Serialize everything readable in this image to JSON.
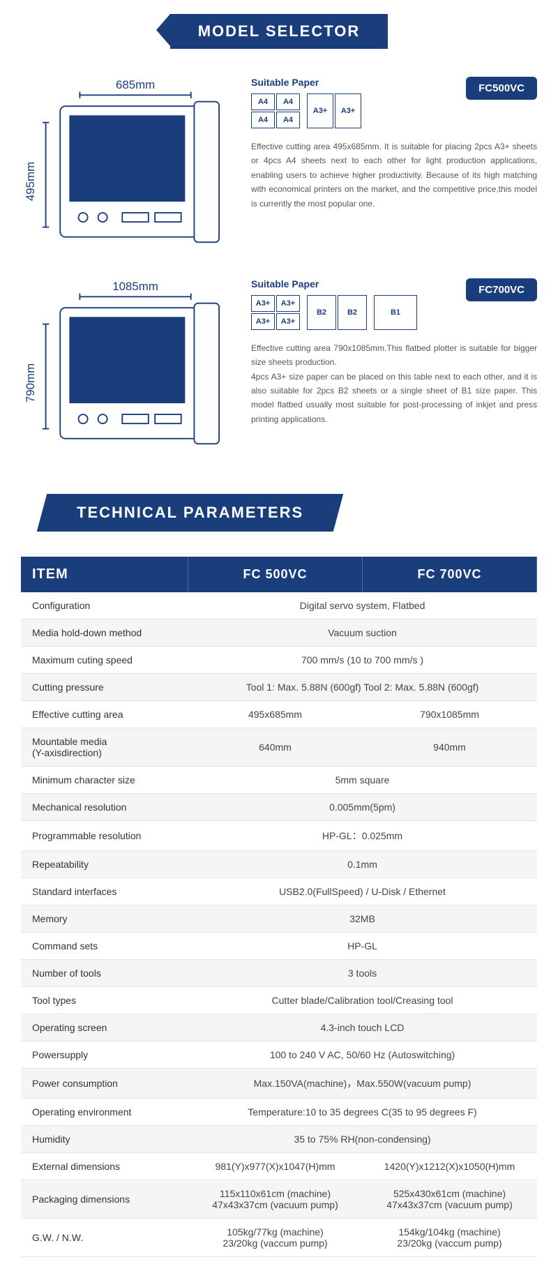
{
  "colors": {
    "primary": "#1a3d7c",
    "text": "#444",
    "row_alt": "#f5f5f5"
  },
  "banners": {
    "model_selector": "MODEL SELECTOR",
    "technical_parameters": "TECHNICAL PARAMETERS"
  },
  "models": [
    {
      "id": "FC500VC",
      "width_label": "685mm",
      "height_label": "495mm",
      "suitable_label": "Suitable Paper",
      "paper_layout": "a4_a3",
      "papers": {
        "a4": "A4",
        "a3p": "A3+"
      },
      "description": "Effective cutting area 495x685mm. It is suitable for placing 2pcs A3+ sheets or 4pcs A4 sheets next to each other for light production applications, enabling users to achieve higher productivity. Because of its high matching with economical printers on the market, and the competitive price,this model is currently the most popular one."
    },
    {
      "id": "FC700VC",
      "width_label": "1085mm",
      "height_label": "790mm",
      "suitable_label": "Suitable Paper",
      "paper_layout": "a3_b2_b1",
      "papers": {
        "a3p": "A3+",
        "b2": "B2",
        "b1": "B1"
      },
      "description": "Effective cutting area 790x1085mm.This flatbed plotter is suitable for bigger size sheets production.\n4pcs A3+ size paper can be placed on this table next to each other, and it is also suitable for 2pcs B2 sheets or a single sheet of B1 size paper. This model flatbed usually most suitable for post-processing of inkjet and press printing applications."
    }
  ],
  "spec_table": {
    "headers": [
      "ITEM",
      "FC 500VC",
      "FC 700VC"
    ],
    "rows": [
      {
        "label": "Configuration",
        "merged": "Digital servo system, Flatbed"
      },
      {
        "label": "Media hold-down method",
        "merged": "Vacuum suction"
      },
      {
        "label": "Maximum cuting speed",
        "merged": "700 mm/s (10 to 700 mm/s )"
      },
      {
        "label": "Cutting pressure",
        "merged": "Tool 1: Max. 5.88N (600gf)  Tool 2: Max. 5.88N (600gf)"
      },
      {
        "label": "Effective cutting area",
        "v1": "495x685mm",
        "v2": "790x1085mm"
      },
      {
        "label": "Mountable media\n(Y-axisdirection)",
        "v1": "640mm",
        "v2": "940mm"
      },
      {
        "label": "Minimum character size",
        "merged": "5mm square"
      },
      {
        "label": "Mechanical resolution",
        "merged": "0.005mm(5pm)"
      },
      {
        "label": "Programmable resolution",
        "merged": "HP-GL：0.025mm"
      },
      {
        "label": "Repeatability",
        "merged": "0.1mm"
      },
      {
        "label": "Standard interfaces",
        "merged": "USB2.0(FullSpeed) / U-Disk / Ethernet"
      },
      {
        "label": "Memory",
        "merged": "32MB"
      },
      {
        "label": "Command sets",
        "merged": "HP-GL"
      },
      {
        "label": "Number of tools",
        "merged": "3 tools"
      },
      {
        "label": "Tool types",
        "merged": "Cutter blade/Calibration tool/Creasing tool"
      },
      {
        "label": "Operating screen",
        "merged": "4.3-inch touch LCD"
      },
      {
        "label": "Powersupply",
        "merged": "100 to 240 V AC,    50/60 Hz (Autoswitching)"
      },
      {
        "label": "Power consumption",
        "merged": "Max.150VA(machine)，Max.550W(vacuum pump)"
      },
      {
        "label": "Operating environment",
        "merged": "Temperature:10 to 35 degrees C(35 to 95 degrees F)"
      },
      {
        "label": "Humidity",
        "merged": "35 to 75% RH(non-condensing)"
      },
      {
        "label": "External dimensions",
        "v1": "981(Y)x977(X)x1047(H)mm",
        "v2": "1420(Y)x1212(X)x1050(H)mm"
      },
      {
        "label": "Packaging dimensions",
        "v1": "115x110x61cm (machine)\n47x43x37cm (vacuum pump)",
        "v2": "525x430x61cm (machine)\n47x43x37cm (vacuum pump)"
      },
      {
        "label": "G.W. / N.W.",
        "v1": "105kg/77kg (machine)\n23/20kg (vaccum pump)",
        "v2": "154kg/104kg (machine)\n23/20kg (vaccum pump)"
      }
    ]
  }
}
